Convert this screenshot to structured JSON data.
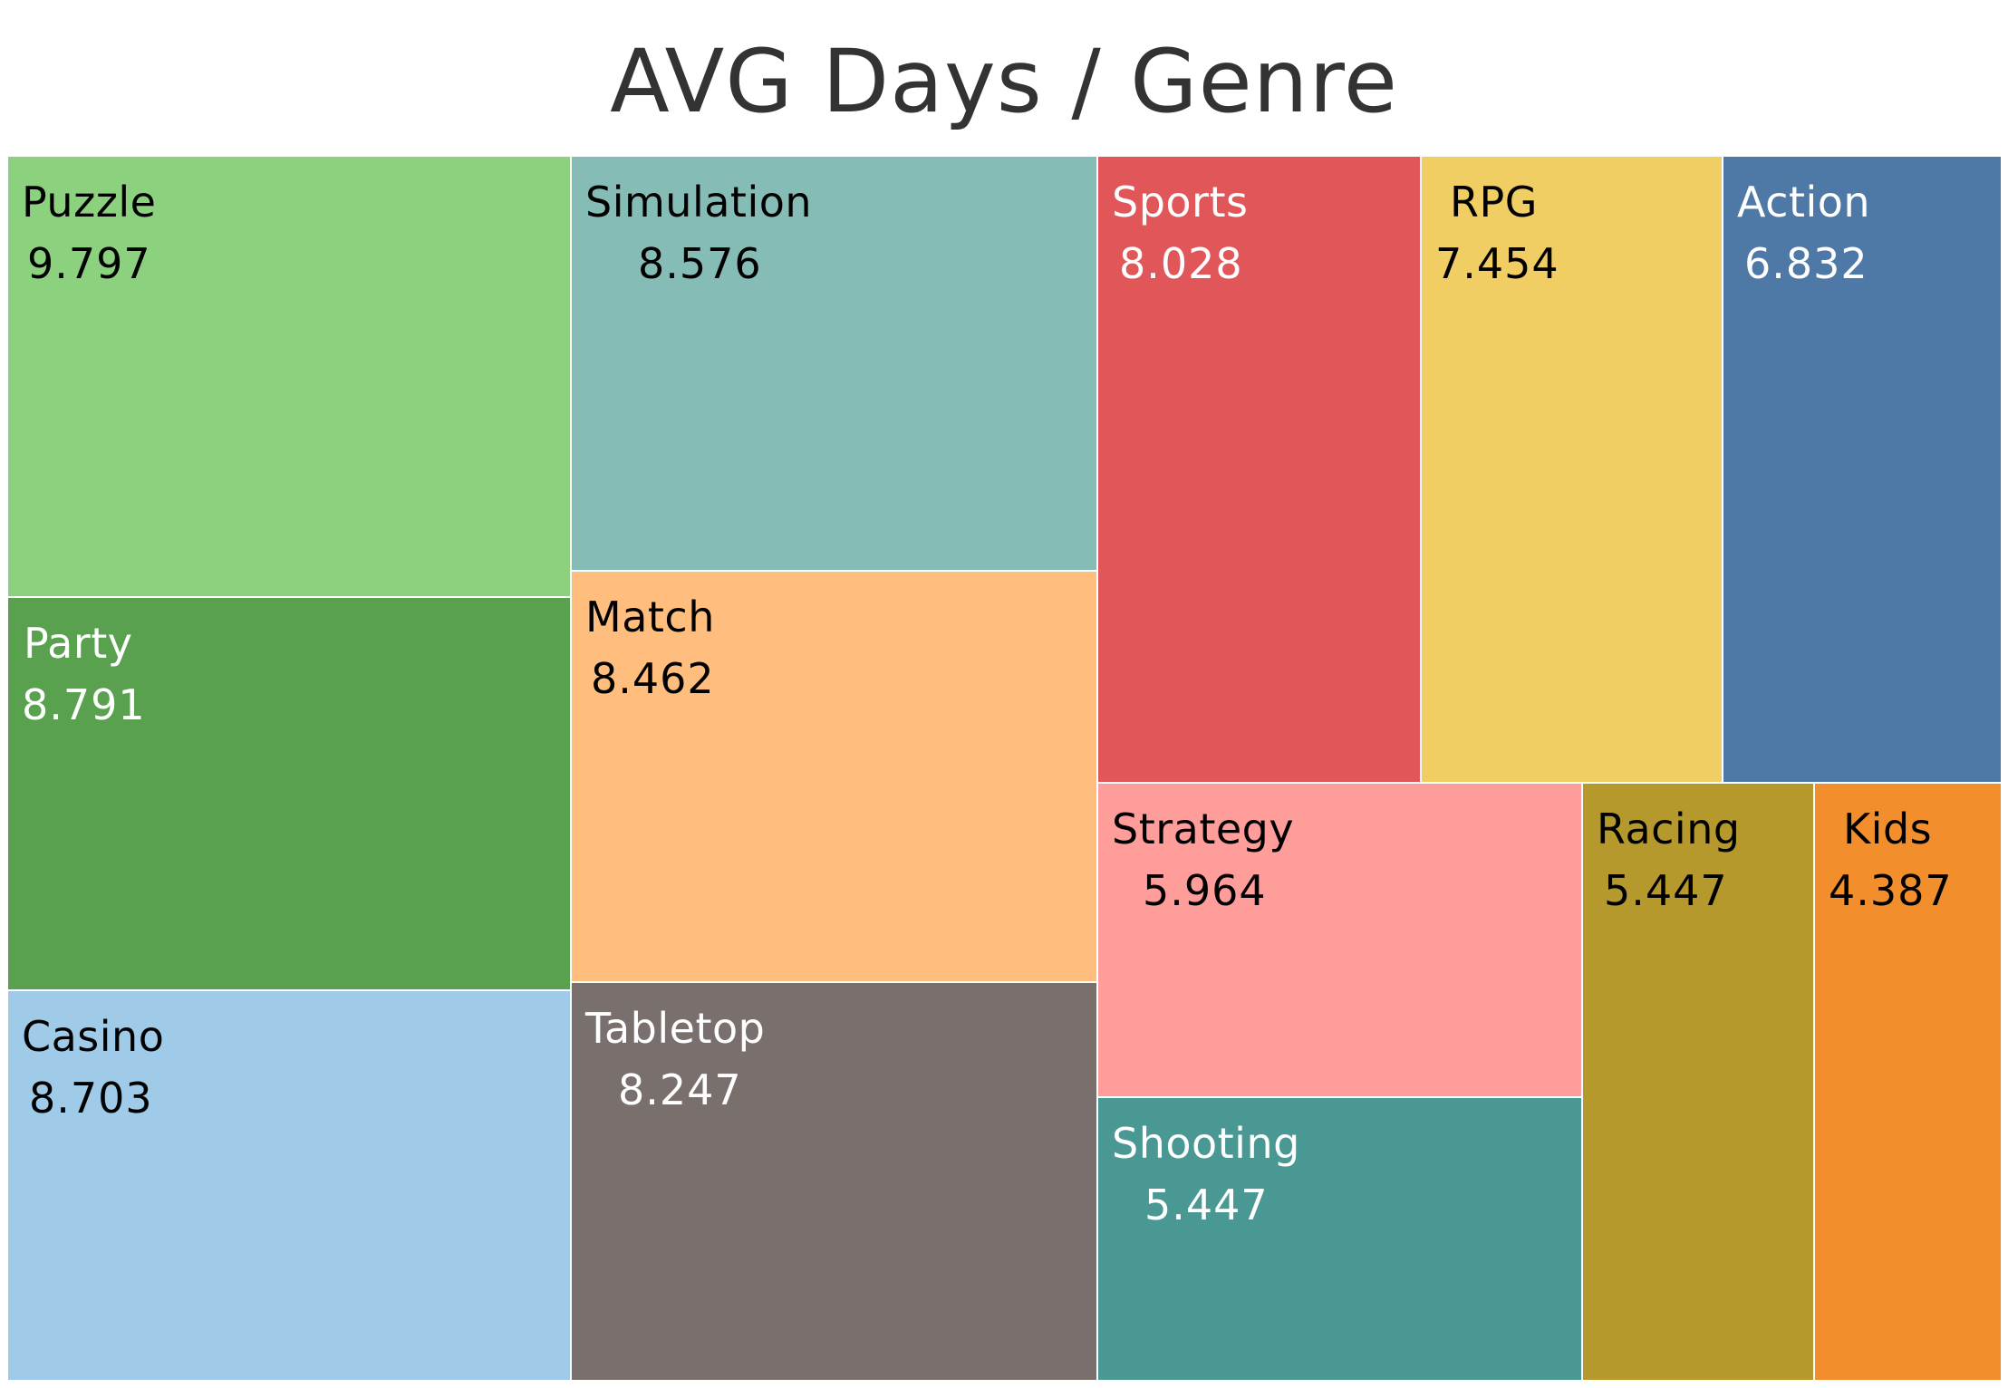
{
  "chart_data": {
    "type": "treemap",
    "title": "AVG Days / Genre",
    "tiles": [
      {
        "name": "Puzzle",
        "value": "9.797",
        "color": "#8cd17d",
        "text_color": "#000000"
      },
      {
        "name": "Party",
        "value": "8.791",
        "color": "#59a14f",
        "text_color": "#ffffff"
      },
      {
        "name": "Casino",
        "value": "8.703",
        "color": "#a0cbe8",
        "text_color": "#000000"
      },
      {
        "name": "Simulation",
        "value": "8.576",
        "color": "#86bcb6",
        "text_color": "#000000"
      },
      {
        "name": "Match",
        "value": "8.462",
        "color": "#ffbe7d",
        "text_color": "#000000"
      },
      {
        "name": "Tabletop",
        "value": "8.247",
        "color": "#79706e",
        "text_color": "#ffffff"
      },
      {
        "name": "Sports",
        "value": "8.028",
        "color": "#e15759",
        "text_color": "#ffffff"
      },
      {
        "name": "RPG",
        "value": "7.454",
        "color": "#f1ce63",
        "text_color": "#000000"
      },
      {
        "name": "Action",
        "value": "6.832",
        "color": "#4e79a7",
        "text_color": "#ffffff"
      },
      {
        "name": "Strategy",
        "value": "5.964",
        "color": "#ff9d9a",
        "text_color": "#000000"
      },
      {
        "name": "Shooting",
        "value": "5.447",
        "color": "#499894",
        "text_color": "#ffffff"
      },
      {
        "name": "Racing",
        "value": "5.447",
        "color": "#b6992d",
        "text_color": "#000000"
      },
      {
        "name": "Kids",
        "value": "4.387",
        "color": "#f28e2b",
        "text_color": "#000000"
      }
    ]
  }
}
